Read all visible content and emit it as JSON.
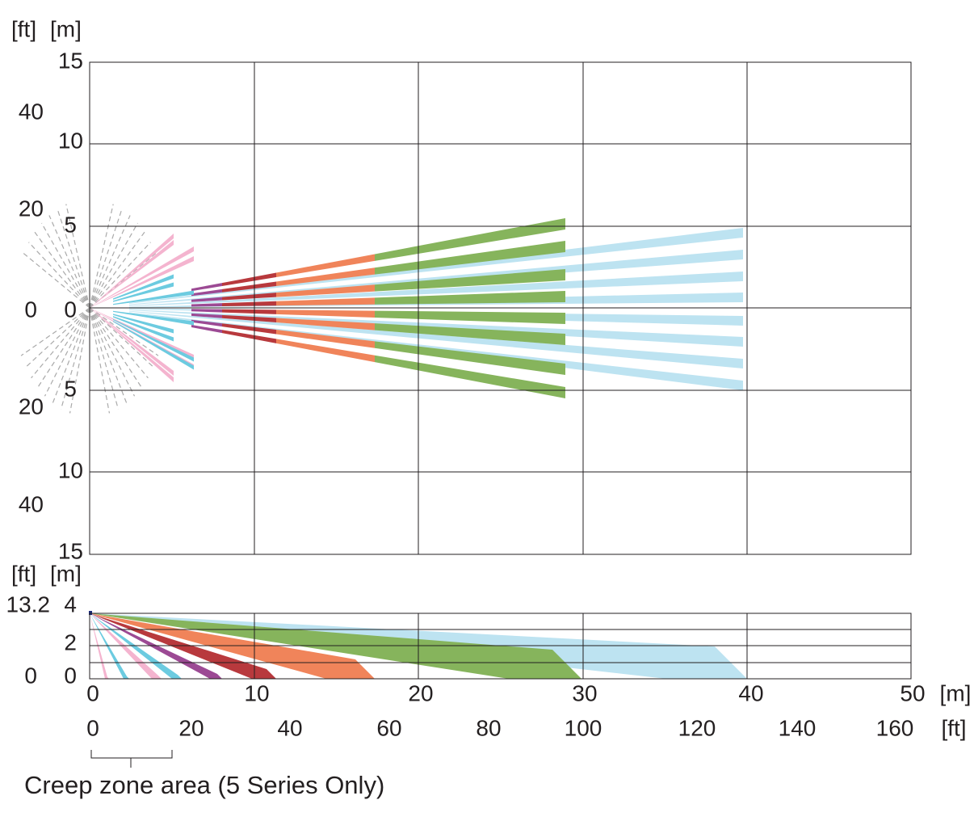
{
  "top_view": {
    "unit_ft": "[ft]",
    "unit_m": "[m]",
    "m_labels": [
      "15",
      "10",
      "5",
      "0",
      "5",
      "10",
      "15"
    ],
    "ft_labels": [
      "40",
      "20",
      "0",
      "20",
      "40"
    ]
  },
  "side_view": {
    "unit_ft": "[ft]",
    "unit_m": "[m]",
    "ft_labels": [
      "13.2",
      "0"
    ],
    "m_labels": [
      "4",
      "2",
      "0"
    ]
  },
  "x_axis": {
    "m_labels": [
      "0",
      "10",
      "20",
      "30",
      "40",
      "50"
    ],
    "m_unit": "[m]",
    "ft_labels": [
      "0",
      "20",
      "40",
      "60",
      "80",
      "100",
      "120",
      "140",
      "160"
    ],
    "ft_unit": "[ft]"
  },
  "caption": "Creep zone area (5 Series Only)"
}
